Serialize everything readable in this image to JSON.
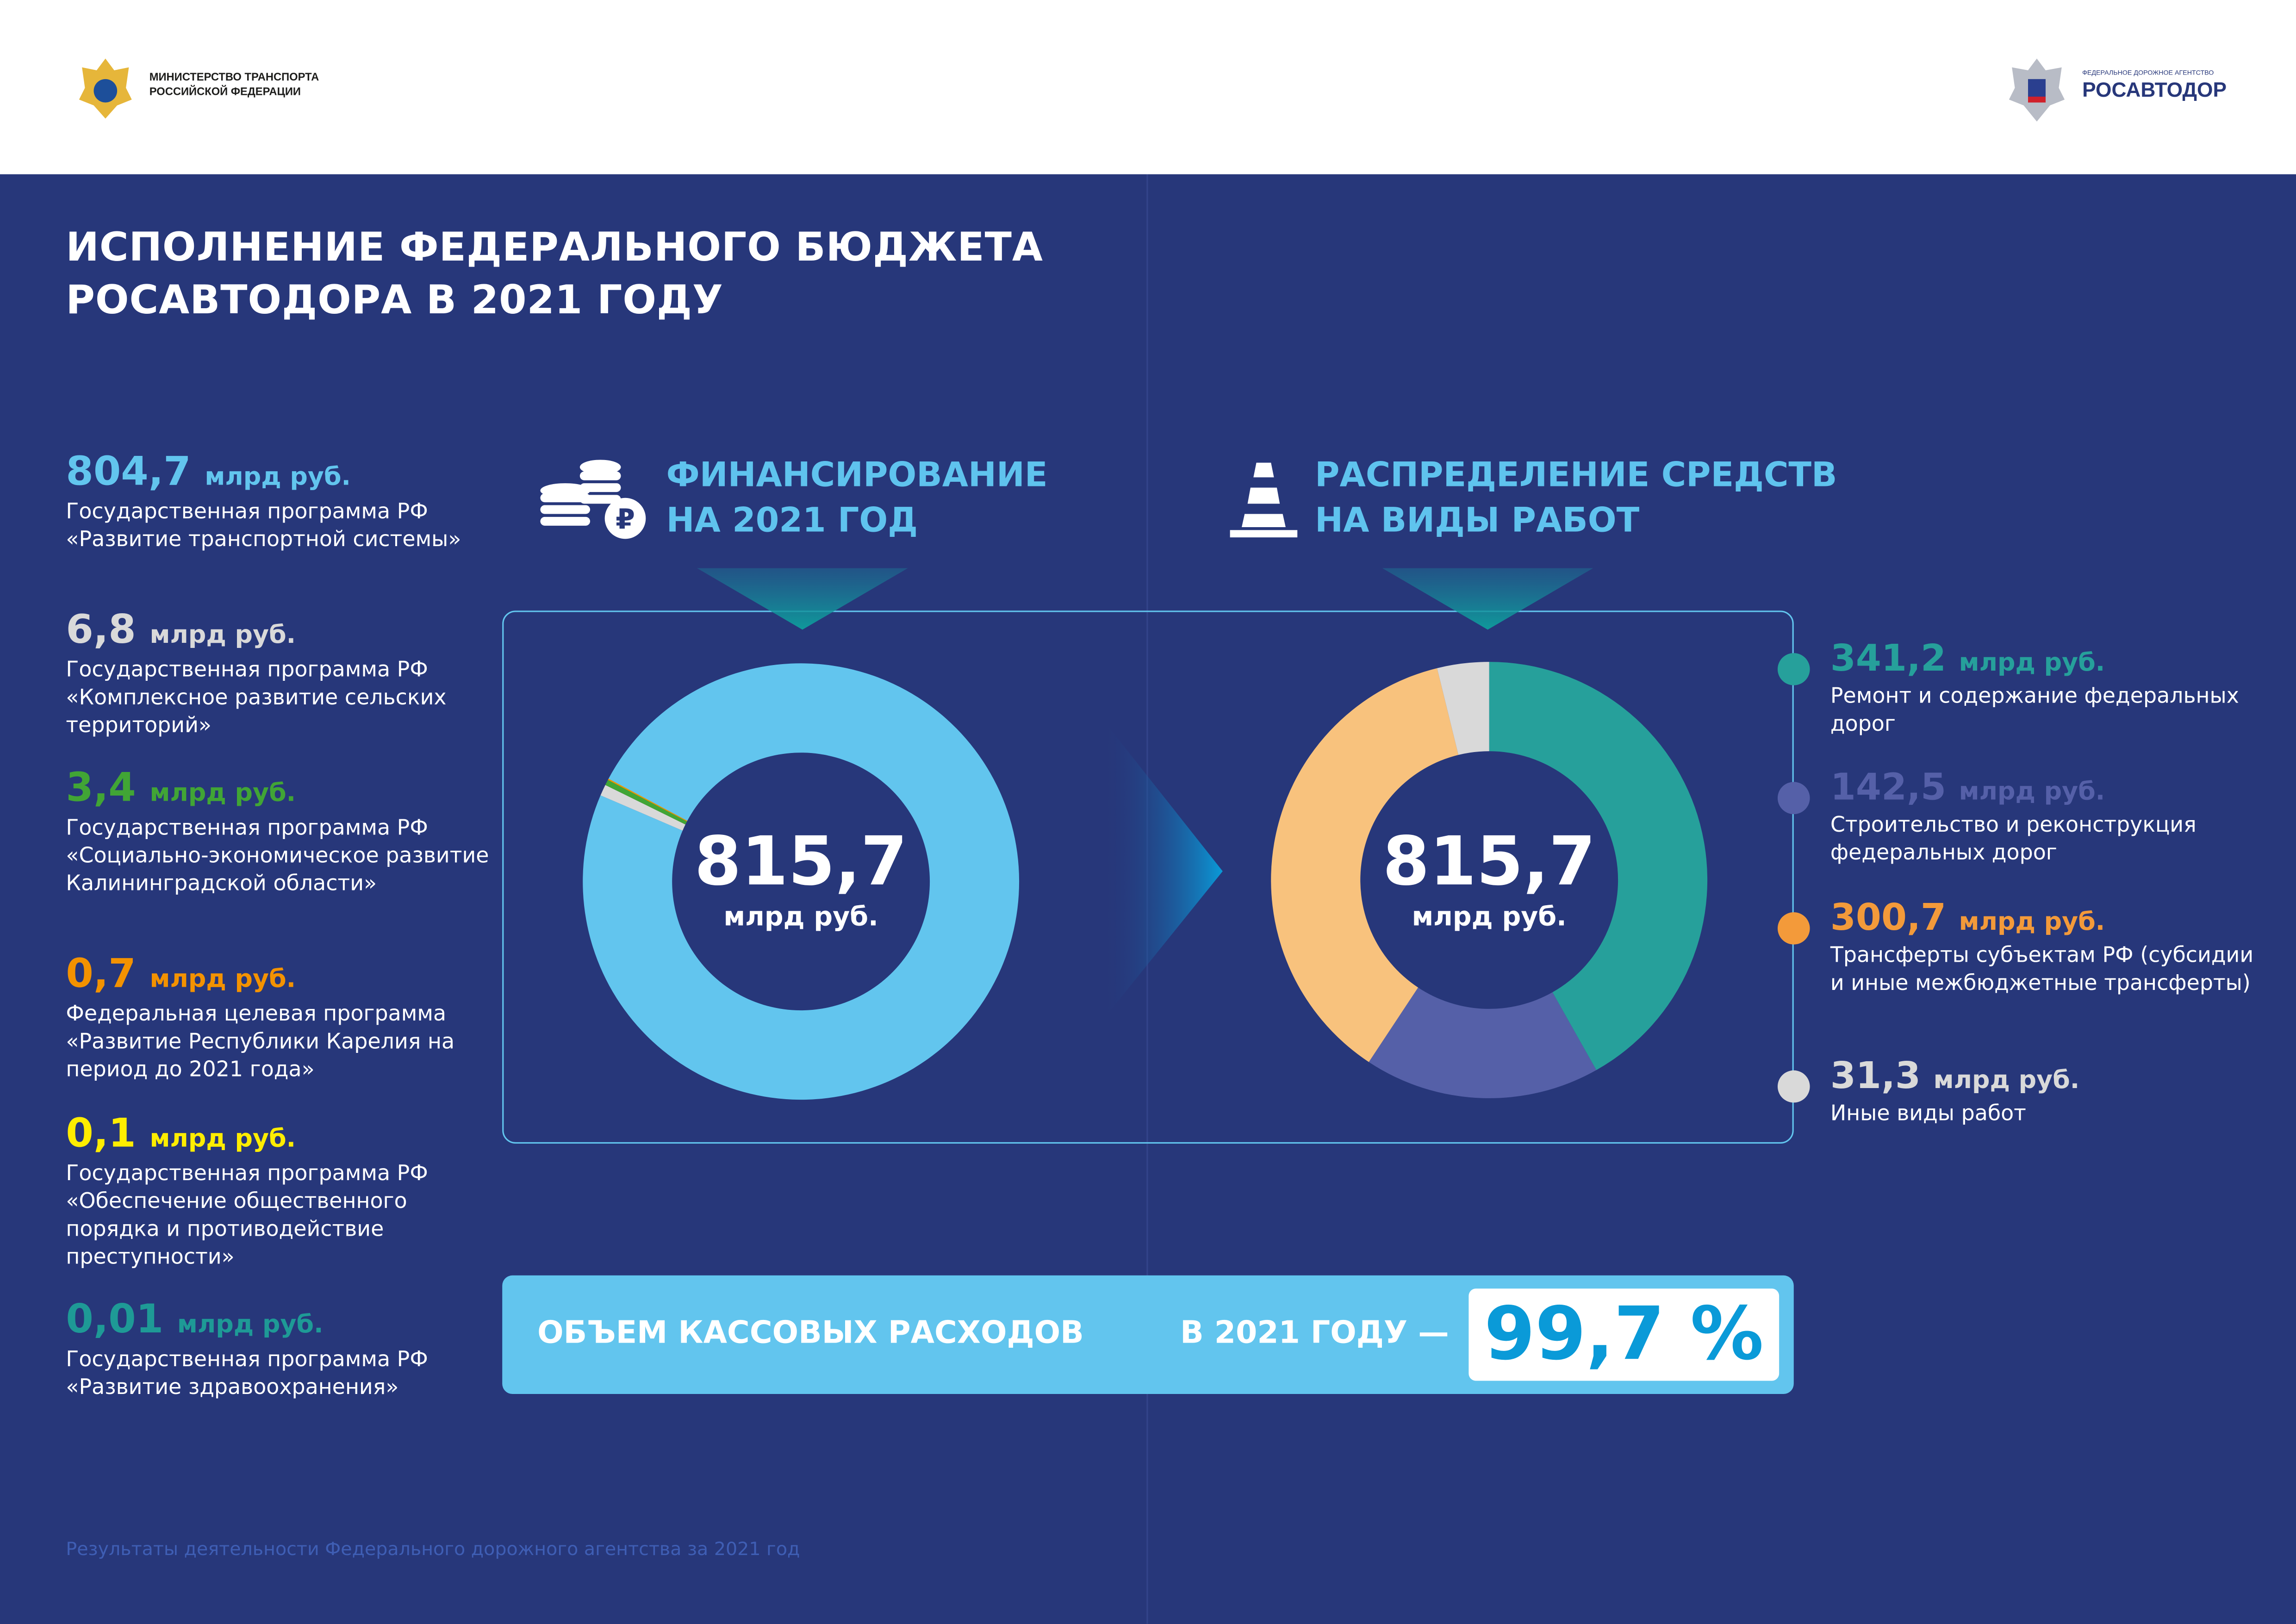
{
  "header": {
    "ministry_line1": "МИНИСТЕРСТВО ТРАНСПОРТА",
    "ministry_line2": "РОССИЙСКОЙ ФЕДЕРАЦИИ",
    "agency_small": "ФЕДЕРАЛЬНОЕ ДОРОЖНОЕ АГЕНТСТВО",
    "agency_name": "РОСАВТОДОР"
  },
  "title": {
    "line1": "ИСПОЛНЕНИЕ ФЕДЕРАЛЬНОГО БЮДЖЕТА",
    "line2": "РОСАВТОДОРА В 2021 ГОДУ"
  },
  "programs": [
    {
      "value": "804,7",
      "unit": "млрд руб.",
      "text": "Государственная программа РФ «Развитие транспортной системы»",
      "color": "#62c5ee"
    },
    {
      "value": "6,8",
      "unit": "млрд руб.",
      "text": "Государственная программа РФ «Комплексное развитие сельских территорий»",
      "color": "#d9d9d9"
    },
    {
      "value": "3,4",
      "unit": "млрд руб.",
      "text": "Государственная программа РФ «Социально-экономическое развитие Калининградской области»",
      "color": "#41a535"
    },
    {
      "value": "0,7",
      "unit": "млрд руб.",
      "text": "Федеральная целевая программа «Развитие Республики Карелия на период до 2021 года»",
      "color": "#f39200"
    },
    {
      "value": "0,1",
      "unit": "млрд руб.",
      "text": "Государственная программа РФ «Обеспечение общественного порядка и противодействие преступности»",
      "color": "#ffed00"
    },
    {
      "value": "0,01",
      "unit": "млрд руб.",
      "text": "Государственная программа РФ «Развитие здравоохранения»",
      "color": "#1e9a96"
    }
  ],
  "funding": {
    "title1": "ФИНАНСИРОВАНИЕ",
    "title2": "НА 2021 ГОД",
    "total": "815,7",
    "unit": "млрд руб."
  },
  "distribution": {
    "title1": "РАСПРЕДЕЛЕНИЕ СРЕДСТВ",
    "title2": "НА ВИДЫ РАБОТ",
    "total": "815,7",
    "unit": "млрд руб."
  },
  "works": [
    {
      "value": "341,2",
      "unit": "млрд руб.",
      "text": "Ремонт и содержание федеральных дорог",
      "color": "#26a09b",
      "slice": "#26a09b"
    },
    {
      "value": "142,5",
      "unit": "млрд руб.",
      "text": "Строительство и реконструкция федеральных дорог",
      "color": "#5560a8",
      "slice": "#5560a8"
    },
    {
      "value": "300,7",
      "unit": "млрд руб.",
      "text": "Трансферты субъектам РФ (субсидии и иные межбюджетные трансферты)",
      "color": "#f39a3a",
      "slice": "#f8c27d"
    },
    {
      "value": "31,3",
      "unit": "млрд руб.",
      "text": "Иные виды работ",
      "color": "#d9d9d9",
      "slice": "#d9d9d9"
    }
  ],
  "banner": {
    "label": "ОБЪЕМ КАССОВЫХ РАСХОДОВ",
    "year": "В 2021 ГОДУ —",
    "percent": "99,7 %"
  },
  "footer": "Результаты деятельности Федерального дорожного агентства за 2021 год",
  "chart_data": [
    {
      "type": "pie",
      "title": "Финансирование на 2021 год",
      "total": 815.7,
      "unit": "млрд руб.",
      "categories": [
        "Развитие транспортной системы",
        "Комплексное развитие сельских территорий",
        "Социально-экономическое развитие Калининградской области",
        "Развитие Республики Карелия",
        "Обеспечение общественного порядка",
        "Развитие здравоохранения"
      ],
      "values": [
        804.7,
        6.8,
        3.4,
        0.7,
        0.1,
        0.01
      ],
      "colors": [
        "#62c5ee",
        "#d9d9d9",
        "#41a535",
        "#f39200",
        "#ffed00",
        "#1e9a96"
      ]
    },
    {
      "type": "pie",
      "title": "Распределение средств на виды работ",
      "total": 815.7,
      "unit": "млрд руб.",
      "categories": [
        "Ремонт и содержание федеральных дорог",
        "Строительство и реконструкция федеральных дорог",
        "Трансферты субъектам РФ",
        "Иные виды работ"
      ],
      "values": [
        341.2,
        142.5,
        300.7,
        31.3
      ],
      "colors": [
        "#26a09b",
        "#5560a8",
        "#f8c27d",
        "#d9d9d9"
      ]
    }
  ]
}
